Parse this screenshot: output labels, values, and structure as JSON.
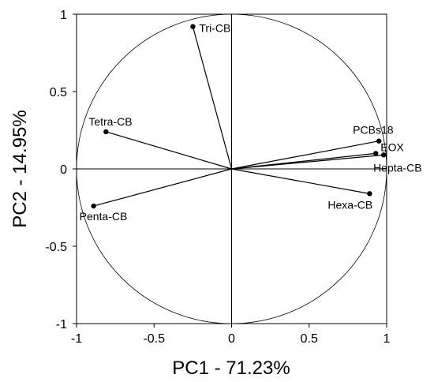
{
  "chart_data": {
    "type": "scatter",
    "subtype": "pca-correlation-circle",
    "xlabel": "PC1 - 71.23%",
    "ylabel": "PC2 - 14.95%",
    "xlim": [
      -1,
      1
    ],
    "ylim": [
      -1,
      1
    ],
    "x_ticks": [
      "-1",
      "-0.5",
      "0",
      "0.5",
      "1"
    ],
    "y_ticks": [
      "1",
      "0.5",
      "0",
      "-0.5",
      "-1"
    ],
    "points": [
      {
        "label": "Tri-CB",
        "x": -0.25,
        "y": 0.92
      },
      {
        "label": "Tetra-CB",
        "x": -0.81,
        "y": 0.24
      },
      {
        "label": "Penta-CB",
        "x": -0.89,
        "y": -0.24
      },
      {
        "label": "PCBs18",
        "x": 0.95,
        "y": 0.18
      },
      {
        "label": "EOX",
        "x": 0.93,
        "y": 0.1
      },
      {
        "label": "Hepta-CB",
        "x": 0.98,
        "y": 0.09
      },
      {
        "label": "Hexa-CB",
        "x": 0.89,
        "y": -0.16
      }
    ],
    "grid": false,
    "unit_circle": true,
    "loadings_vectors": true
  }
}
